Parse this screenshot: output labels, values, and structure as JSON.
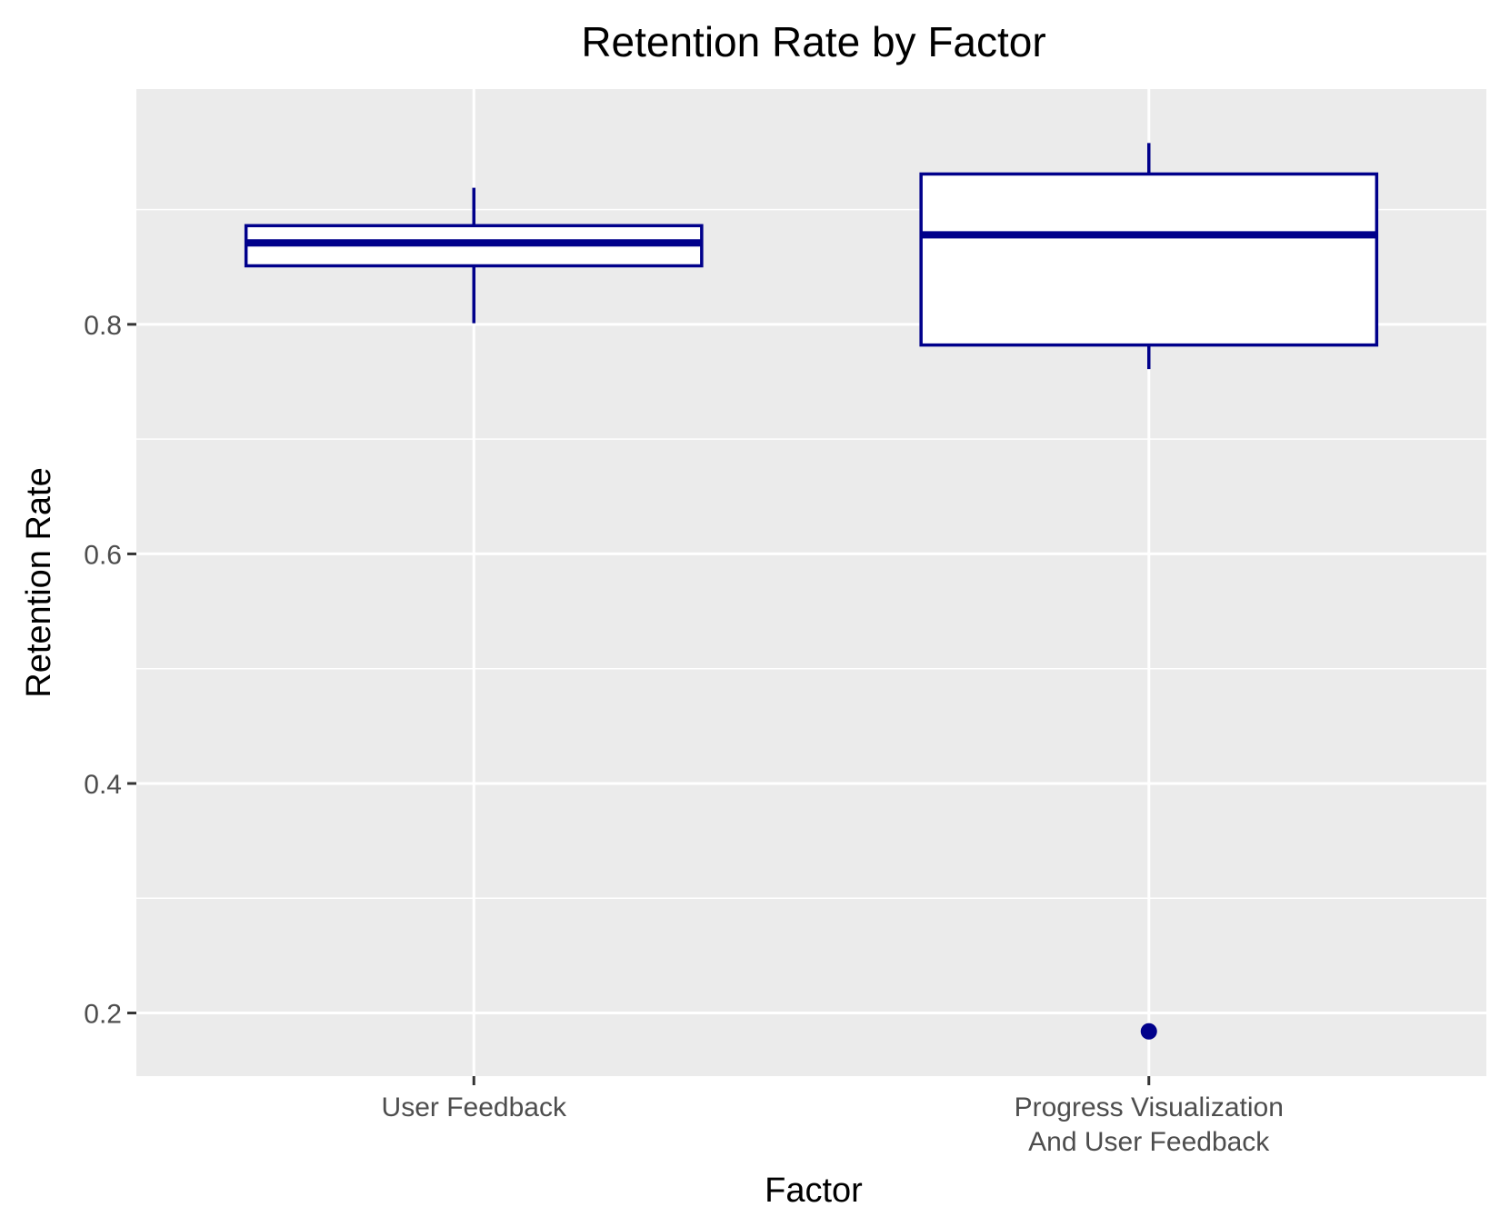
{
  "chart_data": {
    "type": "boxplot",
    "title": "Retention Rate by Factor",
    "xlabel": "Factor",
    "ylabel": "Retention Rate",
    "ylim": [
      0.145,
      1.005
    ],
    "y_ticks": [
      0.2,
      0.4,
      0.6,
      0.8
    ],
    "y_tick_labels": [
      "0.2",
      "0.4",
      "0.6",
      "0.8"
    ],
    "grid": true,
    "legend": "none",
    "colors": {
      "panel": "#ebebeb",
      "grid": "#ffffff",
      "box_stroke": "#00008b",
      "box_fill": "#ffffff",
      "outlier": "#00008b",
      "tick": "#333333"
    },
    "categories": [
      {
        "lines": [
          "User Feedback"
        ]
      },
      {
        "lines": [
          "Progress Visualization",
          "And User Feedback"
        ]
      }
    ],
    "boxes": [
      {
        "whisker_low": 0.801,
        "q1": 0.851,
        "median": 0.871,
        "q3": 0.886,
        "whisker_high": 0.919,
        "outliers": []
      },
      {
        "whisker_low": 0.761,
        "q1": 0.782,
        "median": 0.878,
        "q3": 0.931,
        "whisker_high": 0.958,
        "outliers": [
          0.184
        ]
      }
    ]
  }
}
